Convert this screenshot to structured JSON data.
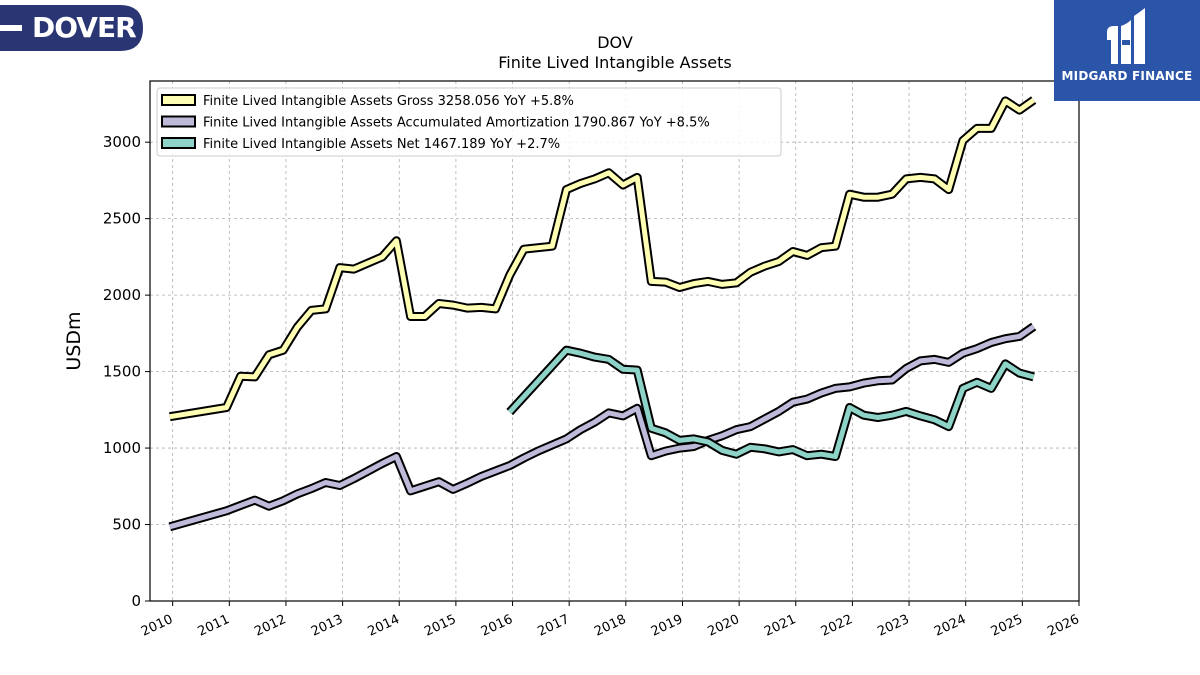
{
  "logos": {
    "left_text": "DOVER",
    "right_text": "MIDGARD FINANCE"
  },
  "chart_data": {
    "type": "line",
    "title": "DOV",
    "subtitle": "Finite Lived Intangible Assets",
    "ylabel": "USDm",
    "xlabel": "",
    "xlim": [
      2009.6,
      2026.0
    ],
    "ylim": [
      0,
      3400
    ],
    "x_ticks": [
      2010,
      2011,
      2012,
      2013,
      2014,
      2015,
      2016,
      2017,
      2018,
      2019,
      2020,
      2021,
      2022,
      2023,
      2024,
      2025,
      2026
    ],
    "y_ticks": [
      0,
      500,
      1000,
      1500,
      2000,
      2500,
      3000
    ],
    "grid": true,
    "legend_position": "top-left",
    "series": [
      {
        "name": "Finite Lived Intangible Assets Gross",
        "legend_label": "Finite Lived Intangible Assets Gross  3258.056 YoY +5.8%",
        "color": "#ffffb3",
        "x": [
          2009.95,
          2010.95,
          2011.2,
          2011.45,
          2011.7,
          2011.95,
          2012.2,
          2012.45,
          2012.7,
          2012.95,
          2013.2,
          2013.45,
          2013.7,
          2013.95,
          2014.2,
          2014.45,
          2014.7,
          2014.95,
          2015.2,
          2015.45,
          2015.7,
          2015.95,
          2016.2,
          2016.45,
          2016.7,
          2016.95,
          2017.2,
          2017.45,
          2017.7,
          2017.95,
          2018.2,
          2018.45,
          2018.7,
          2018.95,
          2019.2,
          2019.45,
          2019.7,
          2019.95,
          2020.2,
          2020.45,
          2020.7,
          2020.95,
          2021.2,
          2021.45,
          2021.7,
          2021.95,
          2022.2,
          2022.45,
          2022.7,
          2022.95,
          2023.2,
          2023.45,
          2023.7,
          2023.95,
          2024.2,
          2024.45,
          2024.7,
          2024.95,
          2025.2
        ],
        "y": [
          1205,
          1265,
          1470,
          1465,
          1610,
          1640,
          1790,
          1900,
          1910,
          2180,
          2170,
          2210,
          2250,
          2355,
          1860,
          1860,
          1945,
          1935,
          1915,
          1920,
          1910,
          2130,
          2300,
          2310,
          2320,
          2690,
          2730,
          2760,
          2800,
          2720,
          2770,
          2090,
          2085,
          2050,
          2075,
          2090,
          2070,
          2080,
          2150,
          2190,
          2220,
          2285,
          2260,
          2310,
          2320,
          2660,
          2640,
          2640,
          2660,
          2760,
          2770,
          2760,
          2690,
          3010,
          3090,
          3090,
          3270,
          3210,
          3275
        ]
      },
      {
        "name": "Finite Lived Intangible Assets Accumulated Amortization",
        "legend_label": "Finite Lived Intangible Assets Accumulated Amortization  1790.867 YoY +8.5%",
        "color": "#bebada",
        "x": [
          2009.95,
          2010.95,
          2011.2,
          2011.45,
          2011.7,
          2011.95,
          2012.2,
          2012.45,
          2012.7,
          2012.95,
          2013.2,
          2013.45,
          2013.7,
          2013.95,
          2014.2,
          2014.45,
          2014.7,
          2014.95,
          2015.2,
          2015.45,
          2015.7,
          2015.95,
          2016.2,
          2016.45,
          2016.7,
          2016.95,
          2017.2,
          2017.45,
          2017.7,
          2017.95,
          2018.2,
          2018.45,
          2018.7,
          2018.95,
          2019.2,
          2019.45,
          2019.7,
          2019.95,
          2020.2,
          2020.45,
          2020.7,
          2020.95,
          2021.2,
          2021.45,
          2021.7,
          2021.95,
          2022.2,
          2022.45,
          2022.7,
          2022.95,
          2023.2,
          2023.45,
          2023.7,
          2023.95,
          2024.2,
          2024.45,
          2024.7,
          2024.95,
          2025.2
        ],
        "y": [
          485,
          590,
          625,
          660,
          620,
          655,
          700,
          735,
          775,
          755,
          800,
          850,
          900,
          945,
          720,
          750,
          780,
          730,
          770,
          815,
          850,
          885,
          935,
          980,
          1020,
          1060,
          1120,
          1170,
          1230,
          1210,
          1260,
          950,
          980,
          1000,
          1010,
          1050,
          1080,
          1120,
          1140,
          1190,
          1240,
          1300,
          1320,
          1360,
          1390,
          1400,
          1425,
          1440,
          1445,
          1520,
          1570,
          1580,
          1560,
          1620,
          1650,
          1690,
          1715,
          1730,
          1795
        ]
      },
      {
        "name": "Finite Lived Intangible Assets Net",
        "legend_label": "Finite Lived Intangible Assets Net  1467.189 YoY +2.7%",
        "color": "#8dd3c7",
        "x": [
          2015.95,
          2016.95,
          2017.2,
          2017.45,
          2017.7,
          2017.95,
          2018.2,
          2018.45,
          2018.7,
          2018.95,
          2019.2,
          2019.45,
          2019.7,
          2019.95,
          2020.2,
          2020.45,
          2020.7,
          2020.95,
          2021.2,
          2021.45,
          2021.7,
          2021.95,
          2022.2,
          2022.45,
          2022.7,
          2022.95,
          2023.2,
          2023.45,
          2023.7,
          2023.95,
          2024.2,
          2024.45,
          2024.7,
          2024.95,
          2025.2
        ],
        "y": [
          1235,
          1640,
          1620,
          1595,
          1580,
          1515,
          1510,
          1130,
          1100,
          1050,
          1060,
          1040,
          985,
          960,
          1005,
          995,
          975,
          990,
          950,
          960,
          945,
          1265,
          1215,
          1200,
          1215,
          1240,
          1210,
          1185,
          1140,
          1390,
          1430,
          1390,
          1550,
          1490,
          1465
        ]
      }
    ]
  }
}
